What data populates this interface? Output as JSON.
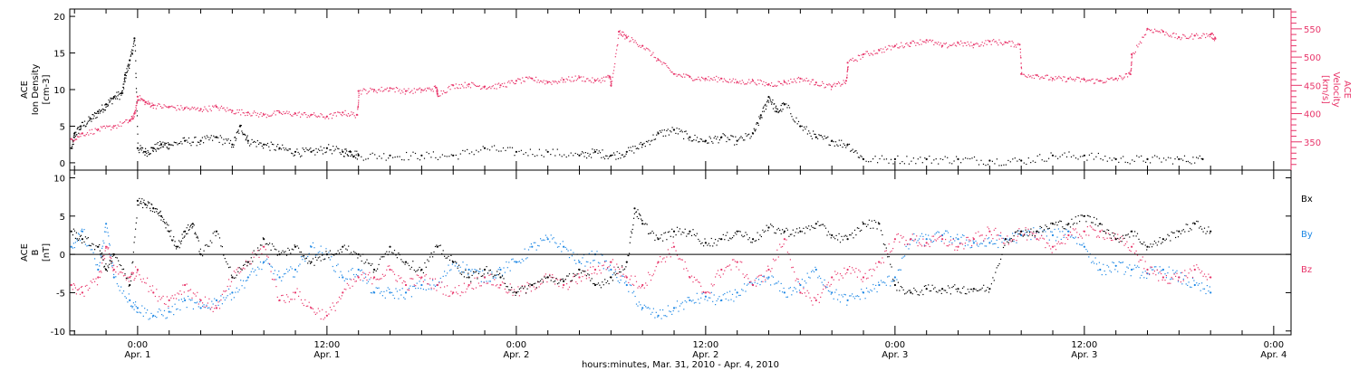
{
  "colors": {
    "black": "#000000",
    "red": "#e8356a",
    "blue": "#1e88e5",
    "axis": "#000000"
  },
  "xlabel": "hours:minutes, Mar. 31, 2010 - Apr. 4, 2010",
  "x_ticks": [
    {
      "time": "0:00",
      "date": "Apr. 1",
      "hours": 0
    },
    {
      "time": "12:00",
      "date": "Apr. 1",
      "hours": 12
    },
    {
      "time": "0:00",
      "date": "Apr. 2",
      "hours": 24
    },
    {
      "time": "12:00",
      "date": "Apr. 2",
      "hours": 36
    },
    {
      "time": "0:00",
      "date": "Apr. 3",
      "hours": 48
    },
    {
      "time": "12:00",
      "date": "Apr. 3",
      "hours": 60
    },
    {
      "time": "0:00",
      "date": "Apr. 4",
      "hours": 72
    }
  ],
  "chart_data": [
    {
      "type": "scatter",
      "name": "density-velocity-panel",
      "x_unit": "hours",
      "xlim": [
        -4.3,
        73.1
      ],
      "ylim_left": [
        -1,
        21
      ],
      "ylim_right": [
        300,
        585
      ],
      "ylabel_left": [
        "ACE",
        "Ion Density",
        "[cm-3]"
      ],
      "ylabel_right": [
        "ACE",
        "Velocity",
        "[km/s]"
      ],
      "left_ticks": [
        0,
        5,
        10,
        15,
        20
      ],
      "right_ticks": [
        350,
        400,
        450,
        500,
        550
      ],
      "series": [
        {
          "axis": "left",
          "color": "black",
          "x": [
            -4.2,
            -4.0,
            -3.6,
            -3.0,
            -2.5,
            -2.0,
            -1.5,
            -1.0,
            -0.8,
            -0.5,
            -0.2,
            0.0,
            0.5,
            1.0,
            1.5,
            2.0,
            3.0,
            4.0,
            5.0,
            6.0,
            6.5,
            7.0,
            8.0,
            9.0,
            10.0,
            11.0,
            12.0,
            13.0,
            13.5,
            14.0,
            16.0,
            18.0,
            20.0,
            22.0,
            24.0,
            26.0,
            28.0,
            29.0,
            30.0,
            31.0,
            32.0,
            33.0,
            34.0,
            35.0,
            36.0,
            37.0,
            38.0,
            39.0,
            39.5,
            40.0,
            40.5,
            41.0,
            42.0,
            43.0,
            44.0,
            45.0,
            46.0,
            48.0,
            50.0,
            52.0,
            54.0,
            56.0,
            58.0,
            60.0,
            62.0,
            64.0,
            66.0,
            67.5
          ],
          "y": [
            2,
            4,
            5,
            6,
            7,
            8,
            9,
            9.5,
            12,
            14,
            17,
            2,
            1.5,
            2,
            2.5,
            2.5,
            3,
            3,
            3.5,
            2.5,
            5,
            3,
            2.5,
            2,
            1.5,
            1.5,
            2,
            1.5,
            1.5,
            1,
            1,
            1,
            1,
            2,
            1.5,
            1.5,
            1,
            1.5,
            1,
            1.5,
            2.5,
            4,
            4.5,
            3.5,
            3,
            3.5,
            3,
            4,
            6.5,
            9,
            7,
            8,
            5,
            3.5,
            3,
            2.5,
            0.5,
            0.5,
            0.5,
            0.5,
            0.3,
            0.3,
            1,
            1,
            0.5,
            0.5,
            0.5,
            0.5
          ]
        },
        {
          "axis": "right",
          "color": "red",
          "x": [
            -4.2,
            -3.5,
            -2.5,
            -1.5,
            -0.5,
            -0.2,
            0.0,
            0.5,
            1.0,
            2.0,
            3.0,
            4.0,
            5.0,
            6.0,
            7.0,
            8.0,
            9.0,
            10.0,
            11.0,
            12.0,
            13.0,
            13.9,
            14.0,
            15.0,
            16.0,
            17.0,
            18.0,
            18.9,
            19.0,
            20.0,
            21.0,
            22.0,
            23.0,
            24.0,
            25.0,
            26.0,
            27.0,
            28.0,
            29.0,
            29.9,
            30.0,
            30.5,
            31.0,
            32.0,
            33.0,
            34.0,
            35.0,
            36.0,
            37.0,
            38.0,
            39.0,
            40.0,
            41.0,
            42.0,
            43.0,
            44.0,
            44.9,
            45.0,
            46.0,
            47.0,
            48.0,
            49.0,
            50.0,
            51.0,
            52.0,
            53.0,
            54.0,
            55.0,
            55.9,
            56.0,
            57.0,
            58.0,
            59.0,
            60.0,
            61.0,
            62.0,
            62.9,
            63.0,
            64.0,
            65.0,
            66.0,
            67.0,
            68.0,
            68.3
          ],
          "y": [
            355,
            365,
            372,
            378,
            388,
            400,
            430,
            420,
            415,
            412,
            410,
            408,
            412,
            405,
            402,
            398,
            402,
            400,
            398,
            395,
            402,
            398,
            440,
            442,
            445,
            440,
            442,
            446,
            435,
            450,
            452,
            448,
            450,
            458,
            462,
            456,
            460,
            464,
            458,
            466,
            450,
            545,
            535,
            520,
            495,
            470,
            465,
            462,
            462,
            456,
            458,
            452,
            456,
            462,
            455,
            448,
            458,
            490,
            505,
            512,
            520,
            525,
            530,
            520,
            525,
            522,
            528,
            526,
            522,
            470,
            468,
            462,
            462,
            460,
            458,
            462,
            470,
            505,
            550,
            545,
            535,
            538,
            540,
            533
          ]
        }
      ]
    },
    {
      "type": "scatter",
      "name": "magnetic-field-panel",
      "x_unit": "hours",
      "xlim": [
        -4.3,
        73.1
      ],
      "ylim": [
        -10.5,
        11
      ],
      "ylabel": [
        "ACE",
        "B",
        "[nT]"
      ],
      "ticks": [
        -10,
        -5,
        0,
        5,
        10
      ],
      "zero_line": true,
      "series": [
        {
          "name": "Bx",
          "color": "black",
          "x": [
            -4.2,
            -3.5,
            -2.5,
            -2.0,
            -1.5,
            -0.5,
            0.0,
            0.5,
            1.0,
            1.5,
            2.0,
            2.5,
            3.0,
            3.5,
            4.0,
            5.0,
            6.0,
            7.0,
            8.0,
            9.0,
            10.0,
            11.0,
            12.0,
            13.0,
            14.0,
            15.0,
            16.0,
            17.0,
            18.0,
            19.0,
            20.0,
            21.0,
            22.0,
            23.0,
            24.0,
            25.0,
            26.0,
            27.0,
            28.0,
            29.0,
            30.0,
            31.0,
            31.5,
            32.0,
            33.0,
            34.0,
            35.0,
            36.0,
            37.0,
            38.0,
            39.0,
            40.0,
            41.0,
            42.0,
            43.0,
            44.0,
            45.0,
            46.0,
            47.0,
            48.0,
            49.0,
            50.0,
            51.0,
            52.0,
            53.0,
            54.0,
            55.0,
            56.0,
            57.0,
            58.0,
            59.0,
            60.0,
            61.0,
            62.0,
            63.0,
            64.0,
            65.0,
            66.0,
            67.0,
            68.0
          ],
          "y": [
            3,
            2,
            1,
            -2,
            0,
            -4,
            7,
            6.5,
            6,
            5,
            3,
            1,
            3,
            4,
            0,
            3,
            -3,
            -1,
            2,
            0,
            1,
            -1,
            0,
            1,
            0,
            -2,
            1,
            -1,
            -2,
            1,
            -1,
            -3,
            -2,
            -3,
            -5,
            -4,
            -3,
            -3.5,
            -2,
            -4,
            -3,
            -1,
            6,
            4,
            2,
            3,
            3,
            1.5,
            2,
            3,
            2,
            3.5,
            3,
            3,
            4,
            2.5,
            2,
            4,
            4,
            -4,
            -5,
            -4.5,
            -4.5,
            -4.5,
            -4.5,
            -4.5,
            2,
            3,
            3,
            4,
            4,
            5,
            4,
            2,
            3,
            1,
            2,
            3,
            4,
            3
          ]
        },
        {
          "name": "By",
          "color": "blue",
          "x": [
            -4.2,
            -3.5,
            -2.5,
            -2.0,
            -1.5,
            -0.5,
            0.0,
            1.0,
            2.0,
            3.0,
            4.0,
            5.0,
            6.0,
            7.0,
            8.0,
            9.0,
            10.0,
            11.0,
            12.0,
            13.0,
            14.0,
            15.0,
            16.0,
            17.0,
            18.0,
            19.0,
            20.0,
            21.0,
            22.0,
            23.0,
            24.0,
            25.0,
            26.0,
            27.0,
            28.0,
            29.0,
            30.0,
            31.0,
            32.0,
            33.0,
            34.0,
            35.0,
            36.0,
            37.0,
            38.0,
            39.0,
            40.0,
            41.0,
            42.0,
            43.0,
            44.0,
            45.0,
            46.0,
            47.0,
            48.0,
            49.0,
            50.0,
            51.0,
            52.0,
            53.0,
            54.0,
            55.0,
            56.0,
            57.0,
            58.0,
            59.0,
            60.0,
            61.0,
            62.0,
            63.0,
            64.0,
            65.0,
            66.0,
            67.0,
            68.0
          ],
          "y": [
            1,
            3,
            -2,
            4,
            -3,
            -6,
            -7,
            -8,
            -7.5,
            -6,
            -7,
            -6,
            -5,
            -3,
            -1,
            -3,
            -2,
            1,
            0,
            -3,
            -2,
            -5,
            -5,
            -5,
            -4,
            -4,
            -1,
            -2,
            -3,
            -2,
            -1,
            1,
            2,
            1,
            -1,
            0,
            -2,
            -4,
            -7,
            -8,
            -7,
            -6,
            -5.5,
            -6,
            -5,
            -4,
            -3,
            -5,
            -4,
            -2,
            -5,
            -6,
            -5,
            -4,
            -3,
            2,
            2,
            2.5,
            2,
            1.5,
            1.5,
            2,
            2.5,
            3,
            2.5,
            3,
            1,
            -2,
            -1.5,
            -2,
            -2.5,
            -2,
            -3,
            -4,
            -5
          ]
        },
        {
          "name": "Bz",
          "color": "red",
          "x": [
            -4.2,
            -3.5,
            -2.5,
            -2.0,
            -1.5,
            -0.5,
            0.0,
            1.0,
            2.0,
            3.0,
            4.0,
            5.0,
            6.0,
            7.0,
            8.0,
            9.0,
            10.0,
            11.0,
            12.0,
            13.0,
            14.0,
            15.0,
            16.0,
            17.0,
            18.0,
            19.0,
            20.0,
            21.0,
            22.0,
            23.0,
            24.0,
            25.0,
            26.0,
            27.0,
            28.0,
            29.0,
            30.0,
            31.0,
            32.0,
            33.0,
            34.0,
            35.0,
            36.0,
            37.0,
            38.0,
            39.0,
            40.0,
            41.0,
            42.0,
            43.0,
            44.0,
            45.0,
            46.0,
            47.0,
            48.0,
            49.0,
            50.0,
            51.0,
            52.0,
            53.0,
            54.0,
            55.0,
            56.0,
            57.0,
            58.0,
            59.0,
            60.0,
            61.0,
            62.0,
            63.0,
            64.0,
            65.0,
            66.0,
            67.0,
            68.0
          ],
          "y": [
            -4,
            -5,
            -3,
            1,
            -2,
            -3,
            -2,
            -5,
            -6,
            -4,
            -6,
            -7,
            -3,
            -1,
            1,
            -6,
            -5,
            -7,
            -8,
            -5,
            -3,
            -3,
            -2,
            -4,
            -3,
            -4,
            -5,
            -4,
            -3,
            -4,
            -5,
            -4,
            -3,
            -4,
            -3,
            -2,
            -1,
            -3,
            -4,
            -1,
            1,
            -3,
            -5,
            -2,
            -1,
            -4,
            -2,
            2,
            -5,
            -6,
            -3,
            -2,
            -3,
            -1,
            2,
            2,
            1.5,
            2,
            1,
            2,
            3,
            2,
            3,
            2,
            1,
            2.5,
            3,
            3,
            2,
            1,
            -2,
            -3,
            -3,
            -2,
            -3
          ]
        }
      ]
    }
  ]
}
